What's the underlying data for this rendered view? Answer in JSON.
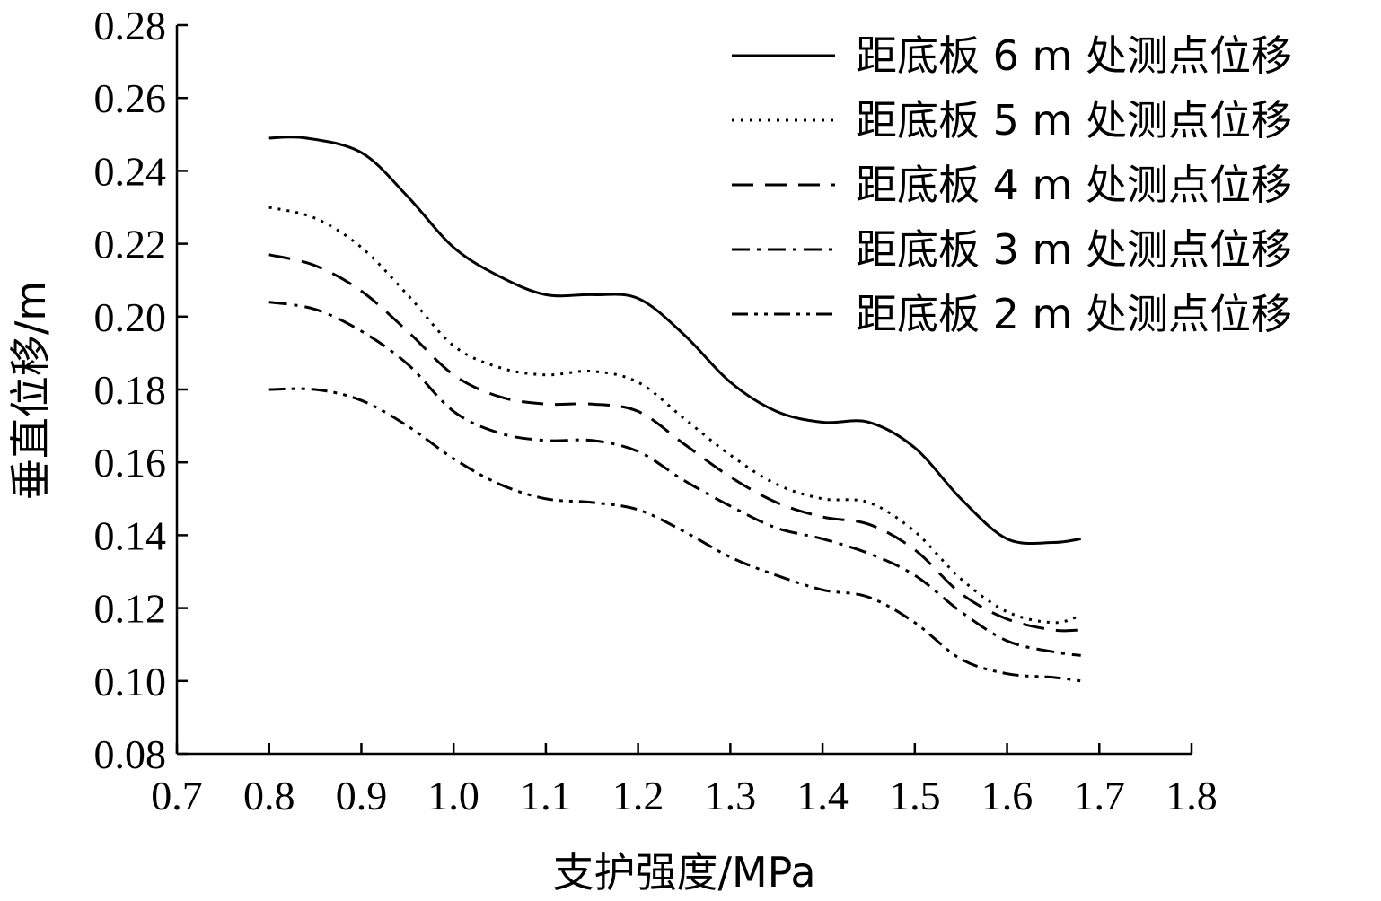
{
  "chart_data": {
    "type": "line",
    "title": "",
    "xlabel": "支护强度/MPa",
    "ylabel": "垂直位移/m",
    "xlim": [
      0.7,
      1.8
    ],
    "ylim": [
      0.08,
      0.28
    ],
    "xticks": [
      "0.7",
      "0.8",
      "0.9",
      "1.0",
      "1.1",
      "1.2",
      "1.3",
      "1.4",
      "1.5",
      "1.6",
      "1.7",
      "1.8"
    ],
    "yticks": [
      "0.08",
      "0.10",
      "0.12",
      "0.14",
      "0.16",
      "0.18",
      "0.20",
      "0.22",
      "0.24",
      "0.26",
      "0.28"
    ],
    "grid": false,
    "legend_position": "top-right",
    "series": [
      {
        "name": "距底板 6 m 处测点位移",
        "dash": "solid",
        "x": [
          0.8,
          0.84,
          0.9,
          0.95,
          1.0,
          1.05,
          1.1,
          1.15,
          1.2,
          1.25,
          1.3,
          1.35,
          1.4,
          1.45,
          1.5,
          1.55,
          1.6,
          1.65,
          1.68
        ],
        "y": [
          0.249,
          0.249,
          0.245,
          0.233,
          0.219,
          0.211,
          0.206,
          0.206,
          0.205,
          0.195,
          0.182,
          0.174,
          0.171,
          0.171,
          0.164,
          0.15,
          0.139,
          0.138,
          0.139
        ]
      },
      {
        "name": "距底板 5 m 处测点位移",
        "dash": "dotted",
        "x": [
          0.8,
          0.85,
          0.9,
          0.95,
          1.0,
          1.05,
          1.1,
          1.15,
          1.2,
          1.25,
          1.3,
          1.35,
          1.4,
          1.45,
          1.5,
          1.55,
          1.6,
          1.65,
          1.68
        ],
        "y": [
          0.23,
          0.227,
          0.219,
          0.206,
          0.192,
          0.186,
          0.184,
          0.185,
          0.182,
          0.172,
          0.162,
          0.154,
          0.15,
          0.149,
          0.141,
          0.128,
          0.119,
          0.116,
          0.118
        ]
      },
      {
        "name": "距底板 4 m 处测点位移",
        "dash": "dashed",
        "x": [
          0.8,
          0.85,
          0.9,
          0.95,
          1.0,
          1.05,
          1.1,
          1.15,
          1.2,
          1.25,
          1.3,
          1.35,
          1.4,
          1.45,
          1.5,
          1.55,
          1.6,
          1.65,
          1.68
        ],
        "y": [
          0.217,
          0.214,
          0.207,
          0.196,
          0.184,
          0.178,
          0.176,
          0.176,
          0.174,
          0.165,
          0.156,
          0.149,
          0.145,
          0.143,
          0.136,
          0.124,
          0.117,
          0.114,
          0.114
        ]
      },
      {
        "name": "距底板 3 m 处测点位移",
        "dash": "dash-dot",
        "x": [
          0.8,
          0.85,
          0.9,
          0.95,
          1.0,
          1.05,
          1.1,
          1.15,
          1.2,
          1.25,
          1.3,
          1.35,
          1.4,
          1.45,
          1.5,
          1.55,
          1.6,
          1.65,
          1.68
        ],
        "y": [
          0.204,
          0.202,
          0.196,
          0.187,
          0.174,
          0.168,
          0.166,
          0.166,
          0.163,
          0.155,
          0.148,
          0.142,
          0.139,
          0.135,
          0.129,
          0.119,
          0.111,
          0.108,
          0.107
        ]
      },
      {
        "name": "距底板 2 m 处测点位移",
        "dash": "dash-dot-dot",
        "x": [
          0.8,
          0.85,
          0.9,
          0.95,
          1.0,
          1.05,
          1.1,
          1.15,
          1.2,
          1.25,
          1.3,
          1.35,
          1.4,
          1.45,
          1.5,
          1.55,
          1.6,
          1.65,
          1.68
        ],
        "y": [
          0.18,
          0.18,
          0.177,
          0.17,
          0.161,
          0.154,
          0.15,
          0.149,
          0.147,
          0.141,
          0.134,
          0.129,
          0.125,
          0.123,
          0.116,
          0.106,
          0.102,
          0.101,
          0.1
        ]
      }
    ]
  }
}
